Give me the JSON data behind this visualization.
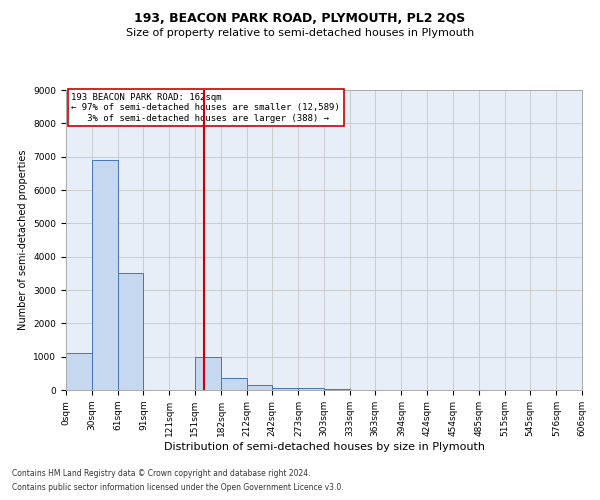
{
  "title": "193, BEACON PARK ROAD, PLYMOUTH, PL2 2QS",
  "subtitle": "Size of property relative to semi-detached houses in Plymouth",
  "xlabel": "Distribution of semi-detached houses by size in Plymouth",
  "ylabel": "Number of semi-detached properties",
  "property_label": "193 BEACON PARK ROAD: 162sqm",
  "pct_smaller": "97% of semi-detached houses are smaller (12,589)",
  "pct_larger": "3% of semi-detached houses are larger (388)",
  "property_size_sqm": 162,
  "bin_edges": [
    0,
    30,
    61,
    91,
    121,
    151,
    182,
    212,
    242,
    273,
    303,
    333,
    363,
    394,
    424,
    454,
    485,
    515,
    545,
    576,
    606
  ],
  "bar_heights": [
    1100,
    6900,
    3500,
    0,
    0,
    1000,
    350,
    150,
    75,
    50,
    25,
    0,
    0,
    0,
    0,
    0,
    0,
    0,
    0,
    0
  ],
  "bar_color": "#c5d8f0",
  "bar_edge_color": "#4472c4",
  "vline_color": "#cc0000",
  "vline_x": 162,
  "ylim": [
    0,
    9000
  ],
  "yticks": [
    0,
    1000,
    2000,
    3000,
    4000,
    5000,
    6000,
    7000,
    8000,
    9000
  ],
  "grid_color": "#cccccc",
  "bg_color": "#e8eef8",
  "annotation_box_color": "#ffffff",
  "annotation_box_edge": "#cc0000",
  "footer_line1": "Contains HM Land Registry data © Crown copyright and database right 2024.",
  "footer_line2": "Contains public sector information licensed under the Open Government Licence v3.0.",
  "title_fontsize": 9,
  "subtitle_fontsize": 8,
  "xlabel_fontsize": 8,
  "ylabel_fontsize": 7,
  "tick_fontsize": 6.5,
  "annotation_fontsize": 6.5,
  "footer_fontsize": 5.5
}
